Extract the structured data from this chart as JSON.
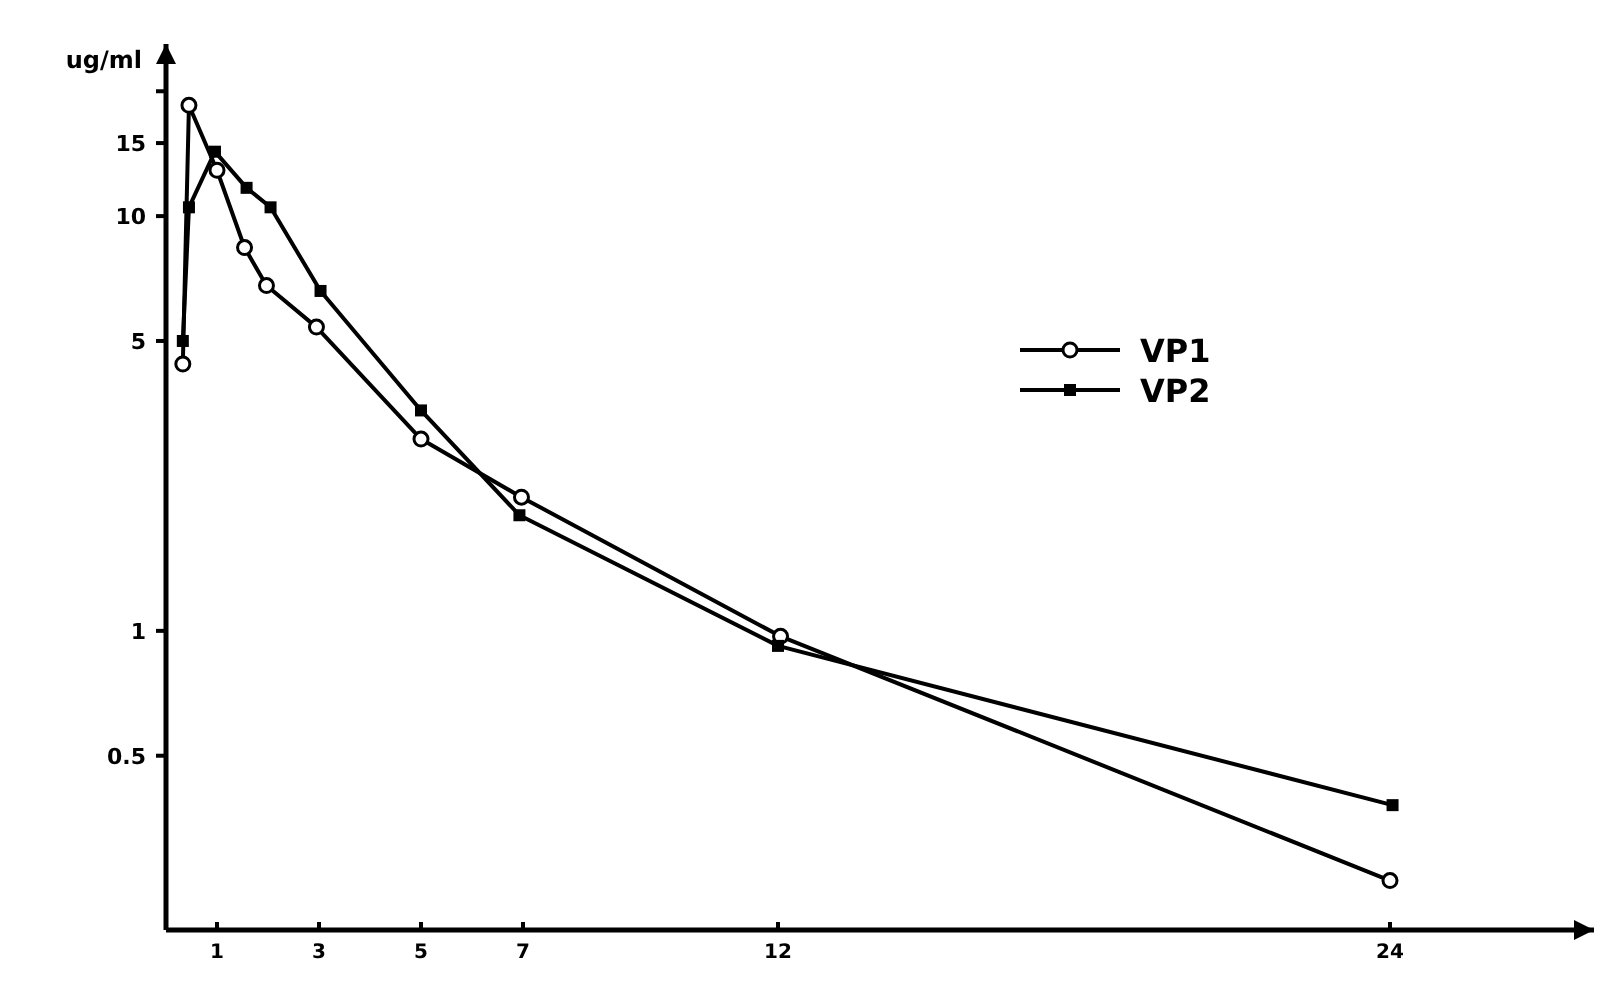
{
  "chart_data": {
    "type": "line",
    "ylabel": "ug/ml",
    "log": "y",
    "xlim": [
      0,
      28
    ],
    "xticks": [
      1,
      3,
      5,
      7,
      12,
      24
    ],
    "ylim": [
      0.19,
      26
    ],
    "yticks": [
      0.5,
      1,
      5,
      10,
      15,
      {
        "value": 20,
        "label": null
      }
    ],
    "grid": false,
    "legend": "right",
    "line_style": "solid",
    "series": [
      {
        "name": "VP1",
        "color": "#000000",
        "marker": "circle",
        "x": [
          0.33,
          0.45,
          1.0,
          1.54,
          1.97,
          2.95,
          5.0,
          6.97,
          12.05,
          24.0
        ],
        "values": [
          4.4,
          18.5,
          12.9,
          8.4,
          6.8,
          5.4,
          2.9,
          2.1,
          0.97,
          0.25
        ]
      },
      {
        "name": "VP2",
        "color": "#000000",
        "marker": "square",
        "x": [
          0.33,
          0.45,
          0.96,
          1.58,
          2.05,
          3.03,
          5.0,
          6.93,
          12.0,
          24.05
        ],
        "values": [
          5.0,
          10.5,
          14.3,
          11.7,
          10.5,
          6.6,
          3.4,
          1.9,
          0.92,
          0.38
        ]
      }
    ]
  }
}
